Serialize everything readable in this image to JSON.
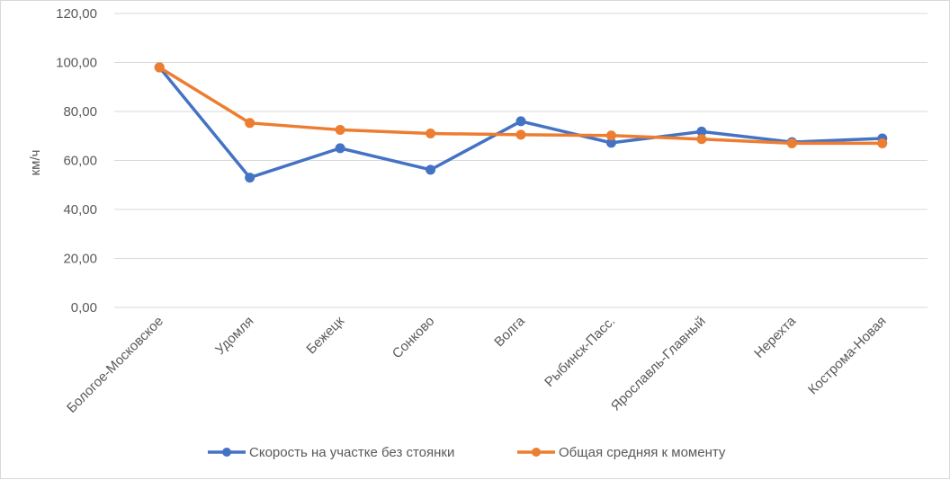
{
  "chart_data": {
    "type": "line",
    "title": "",
    "xlabel": "",
    "ylabel": "км/ч",
    "ylim": [
      0,
      120
    ],
    "ytick_step": 20,
    "ytick_labels": [
      "0,00",
      "20,00",
      "40,00",
      "60,00",
      "80,00",
      "100,00",
      "120,00"
    ],
    "grid": true,
    "legend_position": "bottom",
    "categories": [
      "Бологое-Московское",
      "Удомля",
      "Бежецк",
      "Сонково",
      "Волга",
      "Рыбинск-Пасс.",
      "Ярославль-Главный",
      "Нерехта",
      "Кострома-Новая"
    ],
    "series": [
      {
        "name": "Скорость на участке без стоянки",
        "color": "#4472C4",
        "values": [
          98.0,
          53.0,
          65.0,
          56.2,
          76.0,
          67.2,
          71.8,
          67.5,
          69.0
        ]
      },
      {
        "name": "Общая средняя к моменту",
        "color": "#ED7D31",
        "values": [
          98.0,
          75.3,
          72.5,
          71.0,
          70.5,
          70.2,
          68.7,
          67.0,
          67.0
        ]
      }
    ]
  }
}
